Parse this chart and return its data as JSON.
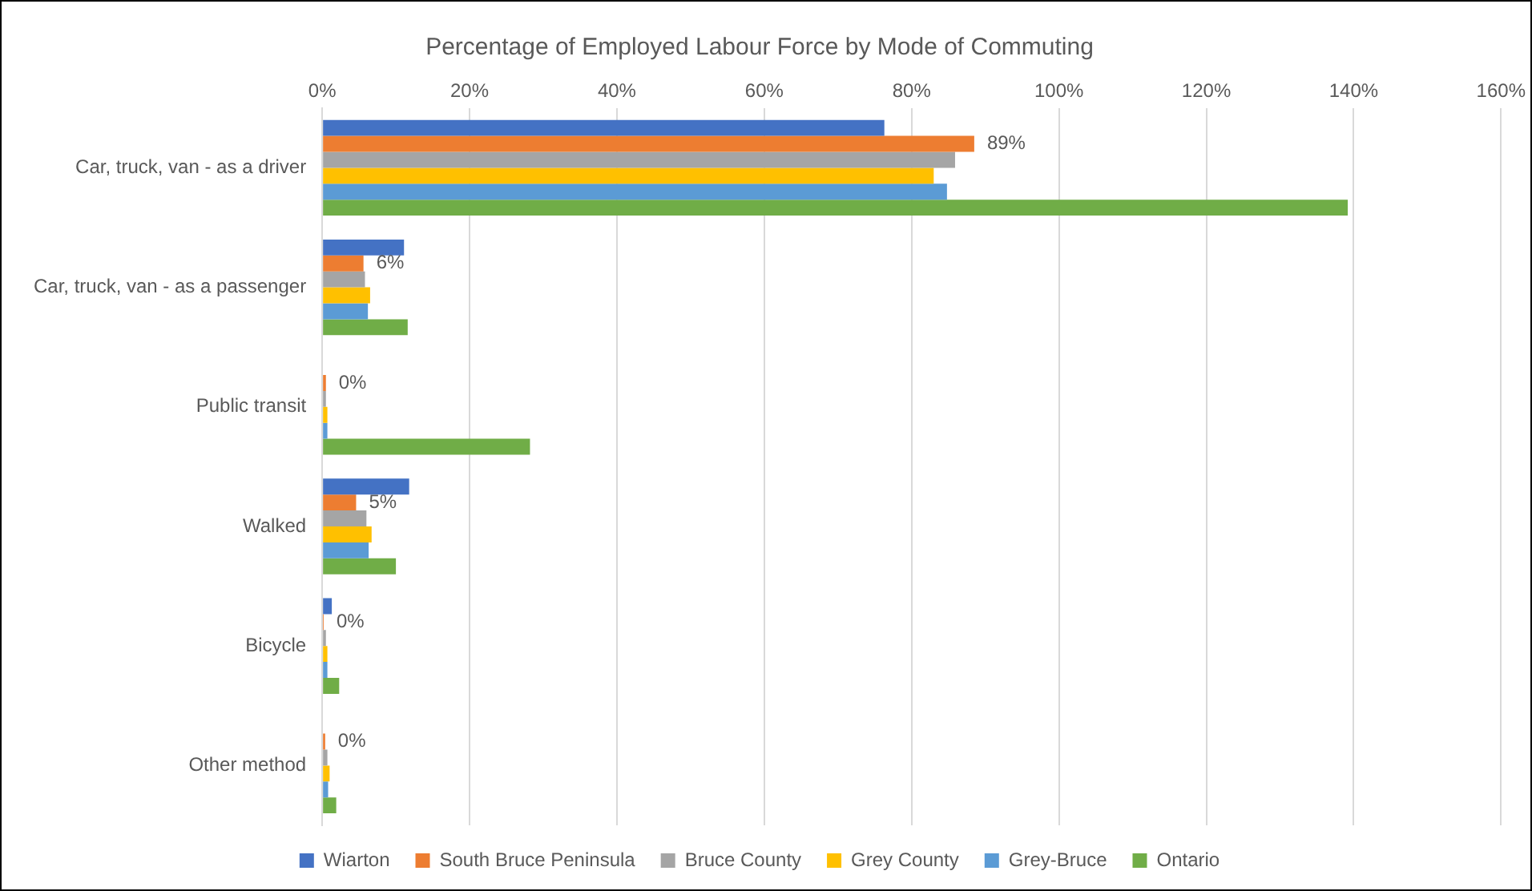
{
  "chart_data": {
    "type": "bar",
    "orientation": "horizontal",
    "title": "Percentage of Employed Labour Force by Mode of Commuting",
    "categories": [
      "Car, truck, van - as a driver",
      "Car, truck, van - as a passenger",
      "Public transit",
      "Walked",
      "Bicycle",
      "Other method"
    ],
    "series": [
      {
        "name": "Wiarton",
        "color": "#4472c4",
        "values": [
          76.3,
          11.1,
          0,
          11.8,
          1.3,
          0
        ]
      },
      {
        "name": "South Bruce Peninsula",
        "color": "#ed7d31",
        "values": [
          88.5,
          5.6,
          0.5,
          4.6,
          0.2,
          0.4
        ],
        "value_labels": [
          "89%",
          "6%",
          "0%",
          "5%",
          "0%",
          "0%"
        ]
      },
      {
        "name": "Bruce County",
        "color": "#a5a5a5",
        "values": [
          85.9,
          5.8,
          0.5,
          6.0,
          0.5,
          0.7
        ]
      },
      {
        "name": "Grey County",
        "color": "#ffc000",
        "values": [
          83.0,
          6.5,
          0.7,
          6.7,
          0.7,
          1.0
        ]
      },
      {
        "name": "Grey-Bruce",
        "color": "#5b9bd5",
        "values": [
          84.8,
          6.2,
          0.7,
          6.3,
          0.7,
          0.8
        ]
      },
      {
        "name": "Ontario",
        "color": "#70ad47",
        "values": [
          139.2,
          11.6,
          28.2,
          10.0,
          2.3,
          1.9
        ]
      }
    ],
    "xlim": [
      0,
      160
    ],
    "xticks": [
      {
        "value": 0,
        "label": "0%"
      },
      {
        "value": 20,
        "label": "20%"
      },
      {
        "value": 40,
        "label": "40%"
      },
      {
        "value": 60,
        "label": "60%"
      },
      {
        "value": 80,
        "label": "80%"
      },
      {
        "value": 100,
        "label": "100%"
      },
      {
        "value": 120,
        "label": "120%"
      },
      {
        "value": 140,
        "label": "140%"
      },
      {
        "value": 160,
        "label": "160%"
      }
    ],
    "grid": "x",
    "legend": "bottom"
  }
}
